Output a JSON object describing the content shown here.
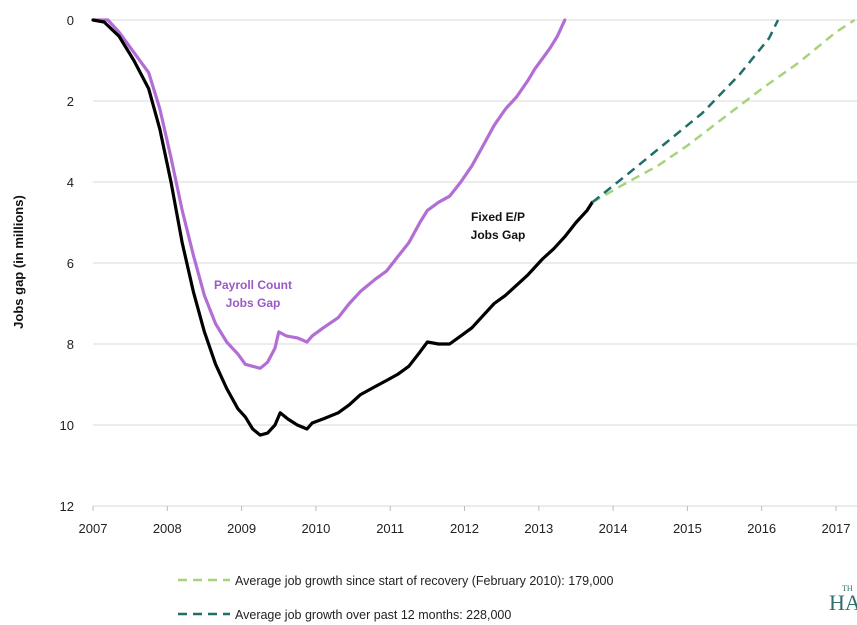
{
  "chart_data": {
    "type": "line",
    "ylabel": "Jobs gap (in millions)",
    "y_inverted": true,
    "ylim": [
      0,
      12
    ],
    "yticks": [
      0,
      2,
      4,
      6,
      8,
      10,
      12
    ],
    "xlim": [
      2007,
      2017.5
    ],
    "xticks": [
      "2007",
      "2008",
      "2009",
      "2010",
      "2011",
      "2012",
      "2013",
      "2014",
      "2015",
      "2016",
      "2017"
    ],
    "grid": true,
    "series": [
      {
        "name": "Payroll Count Jobs Gap",
        "label_lines": [
          "Payroll Count",
          "Jobs Gap"
        ],
        "color": "#b36ed6",
        "style": "solid",
        "points": [
          [
            2007.0,
            0.0
          ],
          [
            2007.2,
            0.0
          ],
          [
            2007.35,
            0.3
          ],
          [
            2007.55,
            0.8
          ],
          [
            2007.75,
            1.3
          ],
          [
            2007.9,
            2.2
          ],
          [
            2008.05,
            3.4
          ],
          [
            2008.2,
            4.7
          ],
          [
            2008.35,
            5.8
          ],
          [
            2008.5,
            6.8
          ],
          [
            2008.65,
            7.5
          ],
          [
            2008.8,
            7.95
          ],
          [
            2008.95,
            8.25
          ],
          [
            2009.05,
            8.5
          ],
          [
            2009.15,
            8.55
          ],
          [
            2009.25,
            8.6
          ],
          [
            2009.35,
            8.45
          ],
          [
            2009.45,
            8.1
          ],
          [
            2009.5,
            7.7
          ],
          [
            2009.6,
            7.8
          ],
          [
            2009.75,
            7.85
          ],
          [
            2009.88,
            7.95
          ],
          [
            2009.95,
            7.8
          ],
          [
            2010.1,
            7.6
          ],
          [
            2010.3,
            7.35
          ],
          [
            2010.45,
            7.0
          ],
          [
            2010.6,
            6.7
          ],
          [
            2010.8,
            6.4
          ],
          [
            2010.95,
            6.2
          ],
          [
            2011.1,
            5.85
          ],
          [
            2011.25,
            5.5
          ],
          [
            2011.4,
            5.0
          ],
          [
            2011.5,
            4.7
          ],
          [
            2011.65,
            4.5
          ],
          [
            2011.8,
            4.35
          ],
          [
            2011.95,
            4.0
          ],
          [
            2012.1,
            3.6
          ],
          [
            2012.25,
            3.1
          ],
          [
            2012.4,
            2.6
          ],
          [
            2012.55,
            2.2
          ],
          [
            2012.7,
            1.9
          ],
          [
            2012.85,
            1.5
          ],
          [
            2012.95,
            1.2
          ],
          [
            2013.05,
            0.95
          ],
          [
            2013.15,
            0.7
          ],
          [
            2013.25,
            0.4
          ],
          [
            2013.35,
            0.0
          ]
        ]
      },
      {
        "name": "Fixed E/P Jobs Gap",
        "label_lines": [
          "Fixed E/P",
          "Jobs Gap"
        ],
        "color": "#000000",
        "style": "solid",
        "points": [
          [
            2007.0,
            0.0
          ],
          [
            2007.15,
            0.05
          ],
          [
            2007.35,
            0.4
          ],
          [
            2007.55,
            1.0
          ],
          [
            2007.75,
            1.7
          ],
          [
            2007.9,
            2.7
          ],
          [
            2008.05,
            4.0
          ],
          [
            2008.2,
            5.5
          ],
          [
            2008.35,
            6.7
          ],
          [
            2008.5,
            7.7
          ],
          [
            2008.65,
            8.5
          ],
          [
            2008.8,
            9.1
          ],
          [
            2008.95,
            9.6
          ],
          [
            2009.05,
            9.8
          ],
          [
            2009.15,
            10.1
          ],
          [
            2009.25,
            10.25
          ],
          [
            2009.35,
            10.2
          ],
          [
            2009.45,
            10.0
          ],
          [
            2009.52,
            9.7
          ],
          [
            2009.62,
            9.85
          ],
          [
            2009.75,
            10.0
          ],
          [
            2009.88,
            10.1
          ],
          [
            2009.95,
            9.95
          ],
          [
            2010.1,
            9.85
          ],
          [
            2010.3,
            9.7
          ],
          [
            2010.45,
            9.5
          ],
          [
            2010.6,
            9.25
          ],
          [
            2010.8,
            9.05
          ],
          [
            2010.95,
            8.9
          ],
          [
            2011.1,
            8.75
          ],
          [
            2011.25,
            8.55
          ],
          [
            2011.4,
            8.2
          ],
          [
            2011.5,
            7.95
          ],
          [
            2011.65,
            8.0
          ],
          [
            2011.8,
            8.0
          ],
          [
            2011.95,
            7.8
          ],
          [
            2012.1,
            7.6
          ],
          [
            2012.25,
            7.3
          ],
          [
            2012.4,
            7.0
          ],
          [
            2012.55,
            6.8
          ],
          [
            2012.7,
            6.55
          ],
          [
            2012.85,
            6.3
          ],
          [
            2012.95,
            6.1
          ],
          [
            2013.05,
            5.9
          ],
          [
            2013.2,
            5.65
          ],
          [
            2013.35,
            5.35
          ],
          [
            2013.5,
            5.0
          ],
          [
            2013.65,
            4.7
          ],
          [
            2013.72,
            4.5
          ]
        ]
      },
      {
        "name": "Average job growth since start of recovery (February 2010): 179,000",
        "color": "#a6d47a",
        "style": "dashed",
        "points": [
          [
            2013.72,
            4.5
          ],
          [
            2014.2,
            4.0
          ],
          [
            2014.6,
            3.6
          ],
          [
            2015.0,
            3.1
          ],
          [
            2015.5,
            2.4
          ],
          [
            2016.0,
            1.7
          ],
          [
            2016.5,
            1.05
          ],
          [
            2017.0,
            0.3
          ],
          [
            2017.25,
            0.0
          ]
        ]
      },
      {
        "name": "Average job growth over past 12 months: 228,000",
        "color": "#1e6f6a",
        "style": "dashed",
        "points": [
          [
            2013.72,
            4.5
          ],
          [
            2014.2,
            3.8
          ],
          [
            2014.7,
            3.05
          ],
          [
            2015.2,
            2.3
          ],
          [
            2015.7,
            1.35
          ],
          [
            2016.1,
            0.45
          ],
          [
            2016.22,
            0.0
          ]
        ]
      }
    ],
    "legend": [
      {
        "label": "Average job growth since start of recovery (February 2010): 179,000",
        "color": "#a6d47a"
      },
      {
        "label": "Average job growth over past 12 months: 228,000",
        "color": "#1e6f6a"
      }
    ]
  },
  "logo": {
    "small": "TH",
    "large": "HA"
  }
}
